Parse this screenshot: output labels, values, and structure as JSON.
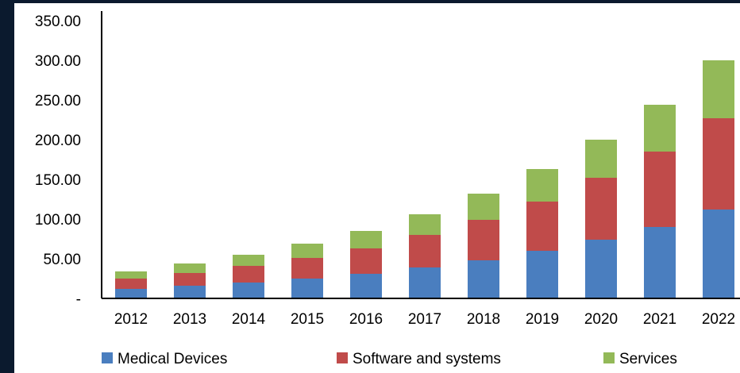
{
  "chart_data": {
    "type": "bar",
    "stacked": true,
    "categories": [
      "2012",
      "2013",
      "2014",
      "2015",
      "2016",
      "2017",
      "2018",
      "2019",
      "2020",
      "2021",
      "2022"
    ],
    "series": [
      {
        "name": "Medical Devices",
        "color": "#4a7ebf",
        "values": [
          12,
          16,
          20,
          25,
          31,
          39,
          48,
          60,
          74,
          90,
          112
        ]
      },
      {
        "name": "Software and systems",
        "color": "#c04b4a",
        "values": [
          13,
          16,
          21,
          26,
          32,
          41,
          51,
          62,
          78,
          95,
          115
        ]
      },
      {
        "name": "Services",
        "color": "#93b958",
        "values": [
          9,
          12,
          14,
          18,
          22,
          26,
          33,
          41,
          48,
          59,
          73
        ]
      }
    ],
    "y_ticks": [
      "-",
      "50.00",
      "100.00",
      "150.00",
      "200.00",
      "250.00",
      "300.00",
      "350.00"
    ],
    "ylim": [
      0,
      350
    ],
    "xlabel": "",
    "ylabel": "",
    "title": "",
    "grid": false,
    "legend_position": "bottom"
  }
}
